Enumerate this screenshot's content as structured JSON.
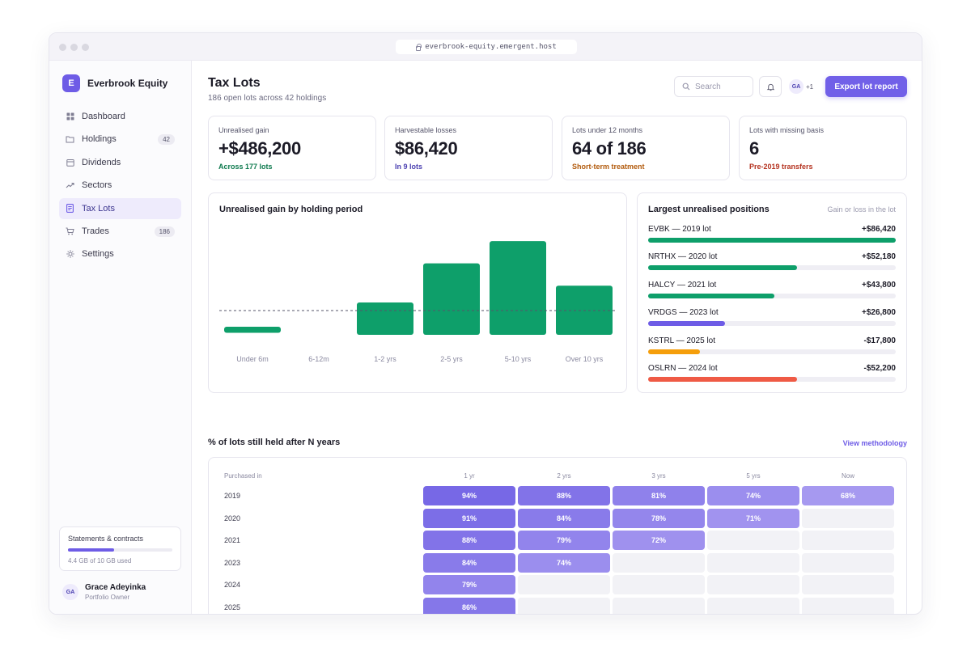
{
  "browser": {
    "url": "everbrook-equity.emergent.host"
  },
  "sidebar": {
    "brand": {
      "logo_letter": "E",
      "name": "Everbrook Equity"
    },
    "items": [
      {
        "label": "Dashboard",
        "icon": "grid-icon",
        "badge": ""
      },
      {
        "label": "Holdings",
        "icon": "folder-icon",
        "badge": "42"
      },
      {
        "label": "Dividends",
        "icon": "calendar-icon",
        "badge": ""
      },
      {
        "label": "Sectors",
        "icon": "trend-icon",
        "badge": ""
      },
      {
        "label": "Tax Lots",
        "icon": "document-icon",
        "badge": "",
        "active": true
      },
      {
        "label": "Trades",
        "icon": "cart-icon",
        "badge": "186"
      },
      {
        "label": "Settings",
        "icon": "gear-icon",
        "badge": ""
      }
    ],
    "storage": {
      "title": "Statements & contracts",
      "used_text": "4.4 GB of 10 GB used",
      "used_fraction": 0.44
    },
    "user": {
      "initials": "GA",
      "name": "Grace Adeyinka",
      "role": "Portfolio Owner"
    }
  },
  "header": {
    "title": "Tax Lots",
    "subtitle": "186 open lots across 42 holdings",
    "search_placeholder": "Search",
    "collaborator_initials": "GA",
    "collaborator_more": "+1",
    "export_label": "Export lot report"
  },
  "kpis": [
    {
      "label": "Unrealised gain",
      "value": "+$486,200",
      "note": "Across 177 lots",
      "note_color": "#0e7a4e"
    },
    {
      "label": "Harvestable losses",
      "value": "$86,420",
      "note": "In 9 lots",
      "note_color": "#4a3fb0"
    },
    {
      "label": "Lots under 12 months",
      "value": "64 of 186",
      "note": "Short-term treatment",
      "note_color": "#b25a0c"
    },
    {
      "label": "Lots with missing basis",
      "value": "6",
      "note": "Pre-2019 transfers",
      "note_color": "#b4321f"
    }
  ],
  "chart_data": {
    "type": "bar",
    "title": "Unrealised gain by holding period",
    "categories": [
      "Under 6m",
      "6-12m",
      "1-2 yrs",
      "2-5 yrs",
      "5-10 yrs",
      "Over 10 yrs"
    ],
    "values": [
      -18,
      0,
      58,
      128,
      168,
      88
    ],
    "reference_line": 0,
    "bar_color": "#0e9f6a"
  },
  "positions": {
    "title": "Largest unrealised positions",
    "hint": "Gain or loss in the lot",
    "rows": [
      {
        "name": "EVBK — 2019 lot",
        "value": "+$86,420",
        "share": 1.0,
        "color": "#0e9f6a"
      },
      {
        "name": "NRTHX — 2020 lot",
        "value": "+$52,180",
        "share": 0.6,
        "color": "#0e9f6a"
      },
      {
        "name": "HALCY — 2021 lot",
        "value": "+$43,800",
        "share": 0.51,
        "color": "#0e9f6a"
      },
      {
        "name": "VRDGS — 2023 lot",
        "value": "+$26,800",
        "share": 0.31,
        "color": "#6e5ce6"
      },
      {
        "name": "KSTRL — 2025 lot",
        "value": "-$17,800",
        "share": 0.21,
        "color": "#f59e0b"
      },
      {
        "name": "OSLRN — 2024 lot",
        "value": "-$52,200",
        "share": 0.6,
        "color": "#ef5a45"
      }
    ]
  },
  "retention": {
    "title": "% of lots still held after N years",
    "link": "View methodology",
    "row_header": "Purchased in",
    "columns": [
      "1 yr",
      "2 yrs",
      "3 yrs",
      "5 yrs",
      "Now"
    ],
    "rows": [
      {
        "year": "2019",
        "values": [
          "94%",
          "88%",
          "81%",
          "74%",
          "68%"
        ]
      },
      {
        "year": "2020",
        "values": [
          "91%",
          "84%",
          "78%",
          "71%",
          ""
        ]
      },
      {
        "year": "2021",
        "values": [
          "88%",
          "79%",
          "72%",
          "",
          ""
        ]
      },
      {
        "year": "2023",
        "values": [
          "84%",
          "74%",
          "",
          "",
          ""
        ]
      },
      {
        "year": "2024",
        "values": [
          "79%",
          "",
          "",
          "",
          ""
        ]
      },
      {
        "year": "2025",
        "values": [
          "86%",
          "",
          "",
          "",
          ""
        ]
      }
    ]
  }
}
